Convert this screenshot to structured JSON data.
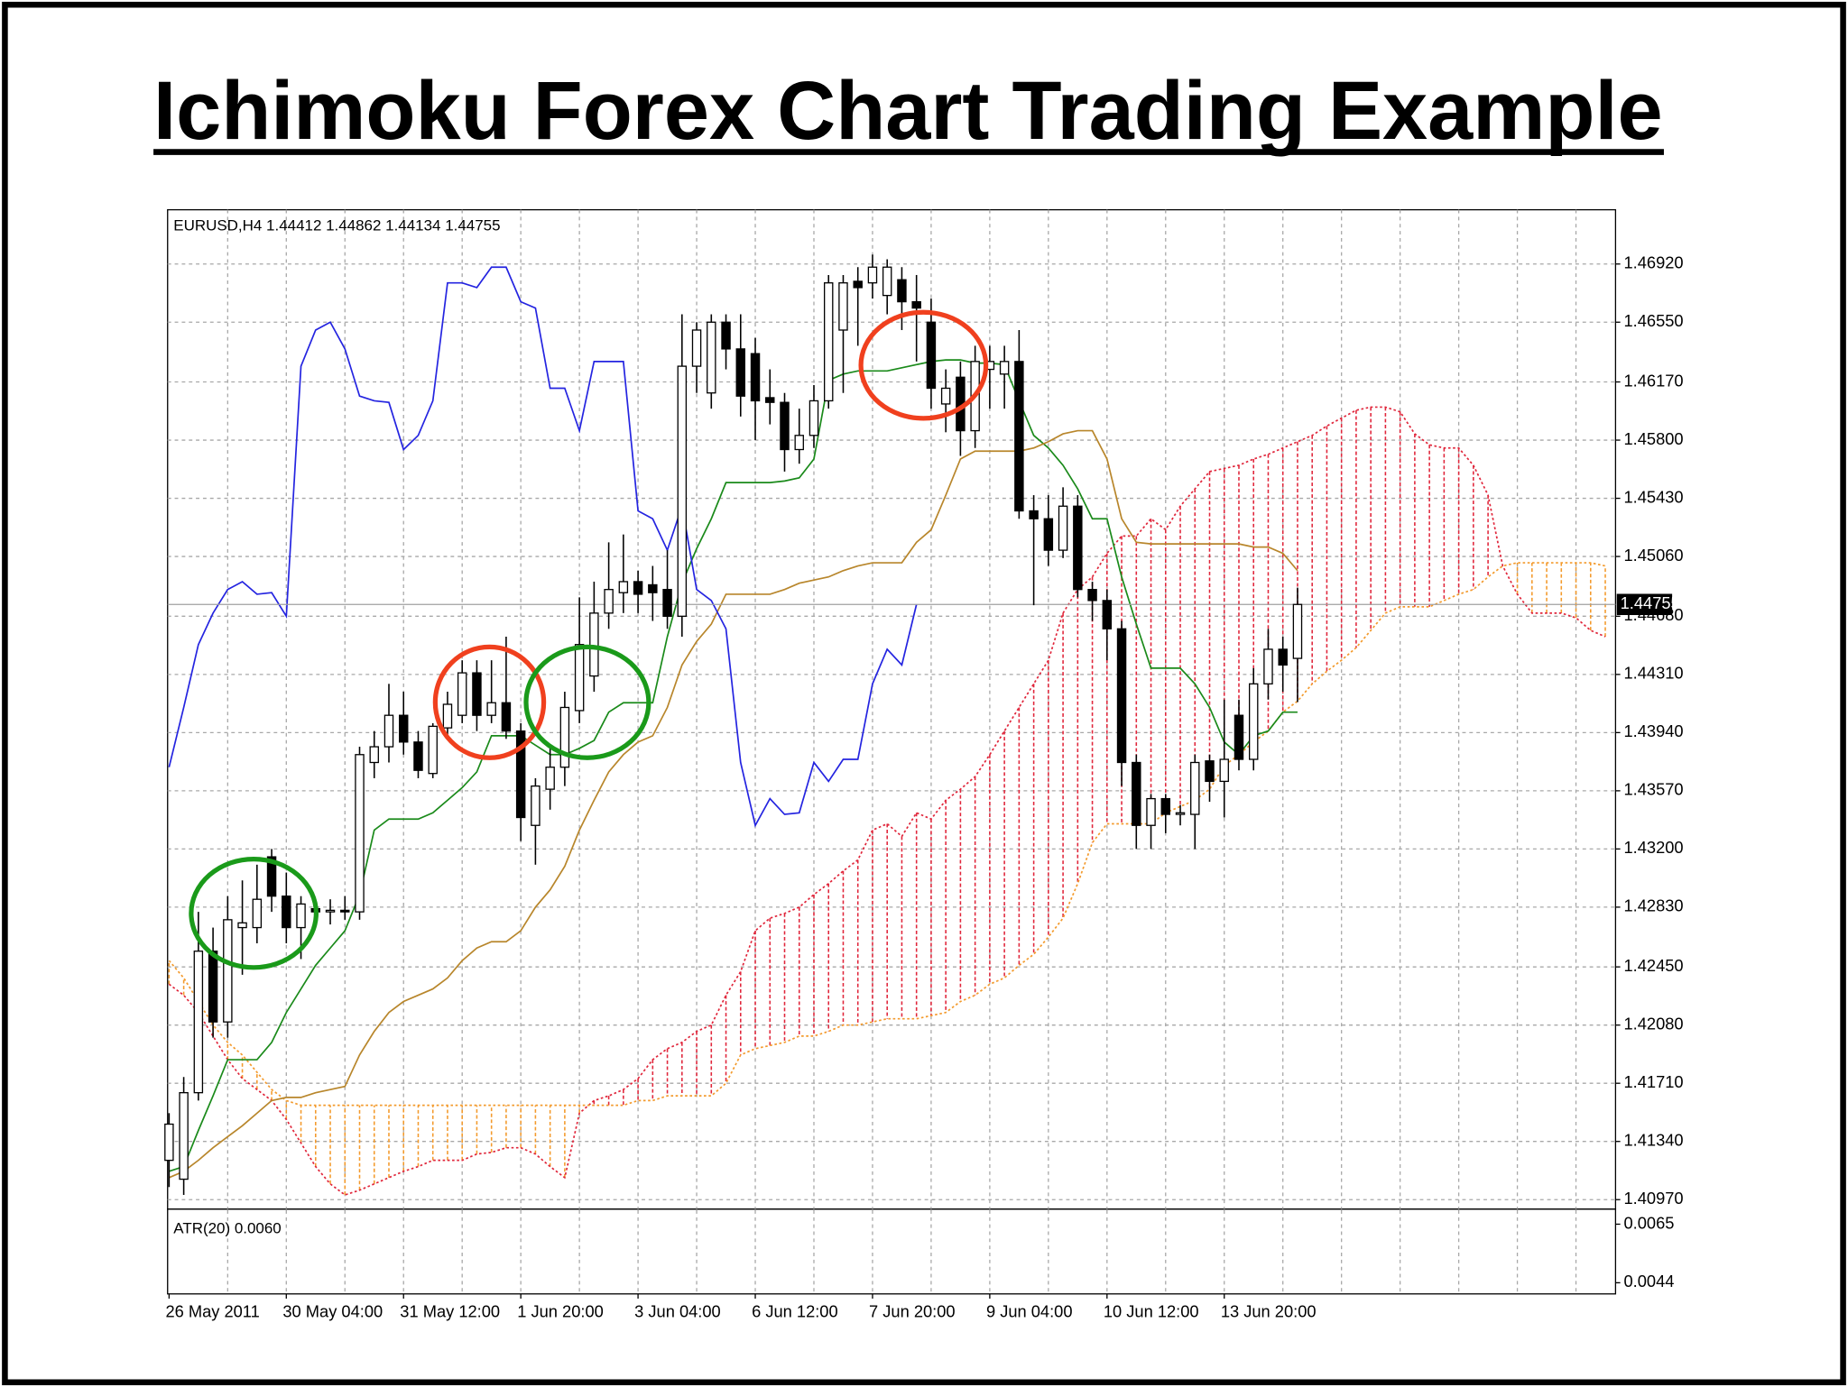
{
  "chart_data": {
    "type": "candlestick",
    "title": "Ichimoku Forex Chart Trading Example",
    "subtitle": "EURUSD,H4  1.44412 1.44862 1.44134 1.44755",
    "indicator_label": "ATR(20) 0.0060",
    "xlim": [
      -0.1,
      98.7
    ],
    "xticks": [
      {
        "value": 0,
        "label": "26 May 2011"
      },
      {
        "value": 8,
        "label": "30 May 04:00"
      },
      {
        "value": 16,
        "label": "31 May 12:00"
      },
      {
        "value": 24,
        "label": "1 Jun 20:00"
      },
      {
        "value": 32,
        "label": "3 Jun 04:00"
      },
      {
        "value": 40,
        "label": "6 Jun 12:00"
      },
      {
        "value": 48,
        "label": "7 Jun 20:00"
      },
      {
        "value": 56,
        "label": "9 Jun 04:00"
      },
      {
        "value": 64,
        "label": "10 Jun 12:00"
      },
      {
        "value": 72,
        "label": "13 Jun 20:00"
      }
    ],
    "xgrid": [
      4,
      8,
      12,
      16,
      20,
      24,
      28,
      32,
      36,
      40,
      44,
      48,
      52,
      56,
      60,
      64,
      68,
      72,
      76,
      80,
      84,
      88,
      92,
      96
    ],
    "ylim": [
      1.4094,
      1.4725
    ],
    "yticks": [
      {
        "value": 1.4097,
        "label": "1.40970"
      },
      {
        "value": 1.4134,
        "label": "1.41340"
      },
      {
        "value": 1.4171,
        "label": "1.41710"
      },
      {
        "value": 1.4208,
        "label": "1.42080"
      },
      {
        "value": 1.4245,
        "label": "1.42450"
      },
      {
        "value": 1.4283,
        "label": "1.42830"
      },
      {
        "value": 1.432,
        "label": "1.43200"
      },
      {
        "value": 1.4357,
        "label": "1.43570"
      },
      {
        "value": 1.4394,
        "label": "1.43940"
      },
      {
        "value": 1.4431,
        "label": "1.44310"
      },
      {
        "value": 1.4468,
        "label": "1.44680"
      },
      {
        "value": 1.4506,
        "label": "1.45060"
      },
      {
        "value": 1.4543,
        "label": "1.45430"
      },
      {
        "value": 1.458,
        "label": "1.45800"
      },
      {
        "value": 1.4617,
        "label": "1.46170"
      },
      {
        "value": 1.4655,
        "label": "1.46550"
      },
      {
        "value": 1.4692,
        "label": "1.46920"
      }
    ],
    "y2lim": [
      0.004,
      0.007
    ],
    "y2ticks": [
      0.0065,
      0.0044
    ],
    "grid": true,
    "up_color": "#ffffff",
    "down_color": "#000000",
    "candles": {
      "open": [
        1.4122,
        1.411,
        1.4165,
        1.4255,
        1.421,
        1.427,
        1.427,
        1.4315,
        1.429,
        1.427,
        1.4282,
        1.428,
        1.4281,
        1.428,
        1.4375,
        1.4385,
        1.4405,
        1.4388,
        1.4368,
        1.4397,
        1.4405,
        1.4432,
        1.4405,
        1.4413,
        1.4395,
        1.4335,
        1.4358,
        1.4372,
        1.4408,
        1.443,
        1.447,
        1.4483,
        1.449,
        1.4488,
        1.4485,
        1.4468,
        1.4627,
        1.461,
        1.4655,
        1.4638,
        1.4635,
        1.4607,
        1.4604,
        1.4574,
        1.4583,
        1.4605,
        1.465,
        1.4681,
        1.468,
        1.4672,
        1.4682,
        1.4668,
        1.4655,
        1.4603,
        1.462,
        1.4586,
        1.4625,
        1.4622,
        1.463,
        1.4535,
        1.453,
        1.451,
        1.4538,
        1.4485,
        1.4478,
        1.446,
        1.4375,
        1.4335,
        1.4352,
        1.4342,
        1.4342,
        1.4376,
        1.4363,
        1.4405,
        1.4377,
        1.4425,
        1.4447,
        1.44412
      ],
      "high": [
        1.4152,
        1.4175,
        1.428,
        1.427,
        1.429,
        1.43,
        1.431,
        1.432,
        1.4305,
        1.429,
        1.4288,
        1.4288,
        1.429,
        1.4385,
        1.4395,
        1.4425,
        1.442,
        1.4395,
        1.44,
        1.442,
        1.444,
        1.444,
        1.444,
        1.4455,
        1.44,
        1.4365,
        1.4385,
        1.442,
        1.448,
        1.449,
        1.4515,
        1.452,
        1.4497,
        1.45,
        1.451,
        1.466,
        1.4655,
        1.466,
        1.466,
        1.466,
        1.4645,
        1.4625,
        1.461,
        1.46,
        1.4615,
        1.4685,
        1.4685,
        1.469,
        1.4698,
        1.4695,
        1.469,
        1.4685,
        1.467,
        1.4625,
        1.463,
        1.464,
        1.464,
        1.464,
        1.465,
        1.4545,
        1.4545,
        1.455,
        1.4545,
        1.449,
        1.4485,
        1.4465,
        1.438,
        1.4355,
        1.4355,
        1.4348,
        1.438,
        1.438,
        1.4415,
        1.4415,
        1.4435,
        1.446,
        1.4455,
        1.44862
      ],
      "low": [
        1.4105,
        1.41,
        1.416,
        1.42,
        1.42,
        1.424,
        1.426,
        1.428,
        1.426,
        1.425,
        1.427,
        1.4272,
        1.4275,
        1.4275,
        1.4365,
        1.4375,
        1.438,
        1.4365,
        1.4365,
        1.4392,
        1.44,
        1.4395,
        1.44,
        1.439,
        1.4325,
        1.431,
        1.4345,
        1.436,
        1.44,
        1.442,
        1.446,
        1.447,
        1.447,
        1.4465,
        1.446,
        1.4455,
        1.461,
        1.46,
        1.4625,
        1.4595,
        1.458,
        1.459,
        1.456,
        1.4565,
        1.4575,
        1.46,
        1.461,
        1.464,
        1.467,
        1.466,
        1.465,
        1.463,
        1.46,
        1.4585,
        1.457,
        1.4575,
        1.46,
        1.46,
        1.453,
        1.4475,
        1.45,
        1.4505,
        1.448,
        1.4465,
        1.444,
        1.436,
        1.432,
        1.432,
        1.433,
        1.4335,
        1.432,
        1.435,
        1.434,
        1.437,
        1.437,
        1.4415,
        1.442,
        1.44134
      ],
      "close": [
        1.4145,
        1.4165,
        1.4255,
        1.421,
        1.4275,
        1.4273,
        1.4288,
        1.429,
        1.427,
        1.4285,
        1.428,
        1.4281,
        1.428,
        1.438,
        1.4385,
        1.4405,
        1.4388,
        1.437,
        1.4398,
        1.4412,
        1.4432,
        1.4405,
        1.4413,
        1.4395,
        1.434,
        1.436,
        1.4372,
        1.441,
        1.445,
        1.447,
        1.4485,
        1.449,
        1.4482,
        1.4483,
        1.4468,
        1.4627,
        1.465,
        1.4655,
        1.4638,
        1.4608,
        1.4605,
        1.4604,
        1.4574,
        1.4583,
        1.4605,
        1.468,
        1.468,
        1.4677,
        1.469,
        1.469,
        1.4668,
        1.4664,
        1.4613,
        1.4613,
        1.4586,
        1.463,
        1.463,
        1.463,
        1.4535,
        1.453,
        1.451,
        1.4538,
        1.4485,
        1.4478,
        1.446,
        1.4375,
        1.4335,
        1.4352,
        1.4342,
        1.4343,
        1.4375,
        1.4363,
        1.4377,
        1.4377,
        1.4425,
        1.4447,
        1.4437,
        1.44755
      ]
    },
    "series": [
      {
        "color": "#1a8a1a",
        "values": [
          1.4115,
          1.4118,
          1.4141,
          1.4163,
          1.4186,
          1.4186,
          1.4186,
          1.4197,
          1.4216,
          1.4231,
          1.4246,
          1.4257,
          1.4268,
          1.4291,
          1.4332,
          1.4339,
          1.4339,
          1.4339,
          1.4343,
          1.4351,
          1.4359,
          1.4369,
          1.4392,
          1.4392,
          1.4392,
          1.4386,
          1.438,
          1.438,
          1.4384,
          1.4389,
          1.4407,
          1.4413,
          1.4413,
          1.4413,
          1.4455,
          1.4489,
          1.4511,
          1.453,
          1.4553,
          1.4553,
          1.4553,
          1.4553,
          1.4554,
          1.4556,
          1.4568,
          1.4618,
          1.4622,
          1.4624,
          1.4624,
          1.4624,
          1.4626,
          1.4628,
          1.463,
          1.4631,
          1.4631,
          1.4629,
          1.4629,
          1.4628,
          1.4605,
          1.4583,
          1.4575,
          1.4564,
          1.4549,
          1.453,
          1.453,
          1.4493,
          1.4463,
          1.4435,
          1.4435,
          1.4435,
          1.4425,
          1.441,
          1.4388,
          1.438,
          1.4392,
          1.4395,
          1.4407,
          1.4407
        ]
      },
      {
        "color": "#b8862b",
        "values": [
          1.4111,
          1.4115,
          1.4122,
          1.413,
          1.4137,
          1.4144,
          1.4152,
          1.416,
          1.4162,
          1.4162,
          1.4165,
          1.4167,
          1.4169,
          1.4189,
          1.4204,
          1.4216,
          1.4223,
          1.4227,
          1.4231,
          1.4238,
          1.4249,
          1.4257,
          1.4261,
          1.4261,
          1.4268,
          1.4283,
          1.4294,
          1.4309,
          1.4332,
          1.4351,
          1.4369,
          1.438,
          1.4388,
          1.4392,
          1.441,
          1.4437,
          1.4452,
          1.4463,
          1.4482,
          1.4482,
          1.4482,
          1.4482,
          1.4485,
          1.4489,
          1.4491,
          1.4493,
          1.4497,
          1.45,
          1.4502,
          1.4502,
          1.4502,
          1.4515,
          1.4523,
          1.4545,
          1.4568,
          1.4573,
          1.4573,
          1.4573,
          1.4573,
          1.4575,
          1.4579,
          1.4584,
          1.4586,
          1.4586,
          1.4568,
          1.453,
          1.4515,
          1.4514,
          1.4514,
          1.4514,
          1.4514,
          1.4514,
          1.4514,
          1.4514,
          1.4512,
          1.4512,
          1.4508,
          1.4497
        ]
      },
      {
        "color": "#2424e0",
        "values": [
          1.4372,
          1.441,
          1.445,
          1.447,
          1.4485,
          1.449,
          1.4482,
          1.4483,
          1.4468,
          1.4627,
          1.465,
          1.4655,
          1.4638,
          1.4608,
          1.4605,
          1.4604,
          1.4574,
          1.4583,
          1.4605,
          1.468,
          1.468,
          1.4677,
          1.469,
          1.469,
          1.4668,
          1.4664,
          1.4613,
          1.4613,
          1.4586,
          1.463,
          1.463,
          1.463,
          1.4535,
          1.453,
          1.451,
          1.4538,
          1.4485,
          1.4478,
          1.446,
          1.4375,
          1.4335,
          1.4352,
          1.4342,
          1.4343,
          1.4375,
          1.4363,
          1.4377,
          1.4377,
          1.4425,
          1.4447,
          1.4437,
          1.44755,
          null,
          null,
          null,
          null,
          null,
          null,
          null,
          null,
          null,
          null,
          null,
          null,
          null,
          null,
          null,
          null,
          null,
          null,
          null,
          null,
          null,
          null,
          null,
          null,
          null,
          null
        ]
      }
    ],
    "cloud": {
      "up_color": "#e0263b",
      "down_color": "#f39a2c",
      "span_a": [
        1.4234,
        1.4227,
        1.4216,
        1.4201,
        1.4186,
        1.4174,
        1.4167,
        1.416,
        1.4148,
        1.4133,
        1.4118,
        1.4107,
        1.41,
        1.4103,
        1.4107,
        1.4111,
        1.4115,
        1.4118,
        1.4122,
        1.4122,
        1.4122,
        1.4126,
        1.4127,
        1.413,
        1.413,
        1.4126,
        1.4118,
        1.4111,
        1.4152,
        1.416,
        1.4163,
        1.4167,
        1.4174,
        1.4186,
        1.4193,
        1.4197,
        1.4204,
        1.4208,
        1.4227,
        1.4242,
        1.4268,
        1.4276,
        1.4279,
        1.4283,
        1.4291,
        1.4298,
        1.4306,
        1.4313,
        1.4332,
        1.4336,
        1.4328,
        1.4343,
        1.4339,
        1.4351,
        1.4358,
        1.4366,
        1.438,
        1.4395,
        1.441,
        1.4425,
        1.444,
        1.447,
        1.4485,
        1.4493,
        1.4508,
        1.4519,
        1.4519,
        1.453,
        1.4523,
        1.4538,
        1.4549,
        1.456,
        1.4562,
        1.4564,
        1.4568,
        1.4571,
        1.4575,
        1.4579,
        1.4583,
        1.4589,
        1.4594,
        1.4599,
        1.4601,
        1.4601,
        1.4598,
        1.4584,
        1.4577,
        1.4575,
        1.4575,
        1.4564,
        1.4545,
        1.45,
        1.4482,
        1.447,
        1.447,
        1.447,
        1.4467,
        1.4459,
        1.4455
      ],
      "span_b": [
        1.4249,
        1.4238,
        1.4223,
        1.4208,
        1.4197,
        1.4189,
        1.4178,
        1.4167,
        1.416,
        1.4157,
        1.4157,
        1.4157,
        1.4157,
        1.4157,
        1.4157,
        1.4157,
        1.4157,
        1.4157,
        1.4157,
        1.4157,
        1.4157,
        1.4157,
        1.4157,
        1.4157,
        1.4157,
        1.4157,
        1.4157,
        1.4157,
        1.4157,
        1.4157,
        1.4157,
        1.4157,
        1.416,
        1.416,
        1.4163,
        1.4163,
        1.4163,
        1.4163,
        1.4171,
        1.4189,
        1.4193,
        1.4195,
        1.4197,
        1.4201,
        1.4201,
        1.4204,
        1.4208,
        1.4208,
        1.421,
        1.4212,
        1.4212,
        1.4212,
        1.4214,
        1.4216,
        1.4223,
        1.4227,
        1.4234,
        1.4238,
        1.4246,
        1.4253,
        1.4264,
        1.4276,
        1.4298,
        1.4324,
        1.4336,
        1.4336,
        1.4336,
        1.4336,
        1.4343,
        1.4347,
        1.4351,
        1.4358,
        1.4373,
        1.438,
        1.4388,
        1.4395,
        1.4407,
        1.4414,
        1.4425,
        1.4433,
        1.444,
        1.4448,
        1.4459,
        1.447,
        1.4474,
        1.4474,
        1.4474,
        1.4478,
        1.4482,
        1.4485,
        1.4493,
        1.45,
        1.4502,
        1.4502,
        1.4502,
        1.4502,
        1.4502,
        1.4502,
        1.45
      ]
    }
  }
}
